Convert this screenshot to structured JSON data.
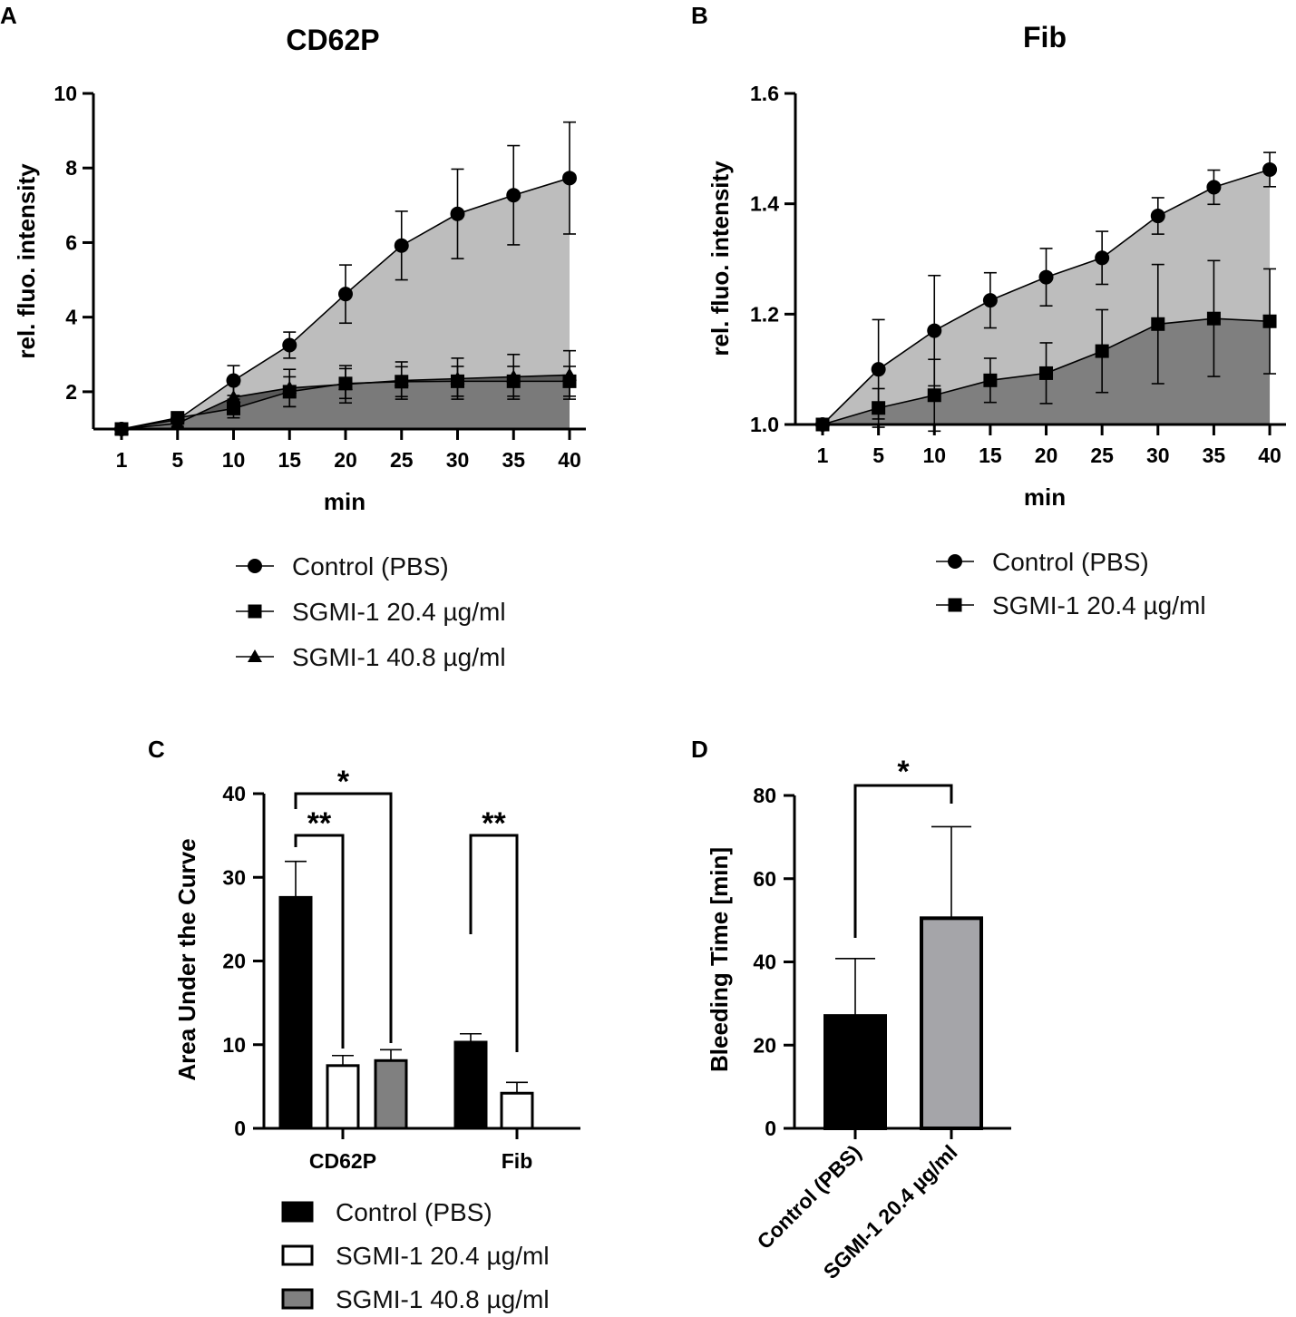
{
  "chart_data": [
    {
      "panel": "A",
      "type": "area",
      "title": "CD62P",
      "xlabel": "min",
      "ylabel": "rel. fluo. intensity",
      "x": [
        "1",
        "5",
        "10",
        "15",
        "20",
        "25",
        "30",
        "35",
        "40"
      ],
      "yticks": [
        "2",
        "4",
        "6",
        "8",
        "10"
      ],
      "ylim": [
        1,
        10
      ],
      "series": [
        {
          "name": "Control (PBS)",
          "marker": "circle",
          "fill": "#bdbdbd",
          "values": [
            1.0,
            1.25,
            2.3,
            3.25,
            4.62,
            5.92,
            6.77,
            7.27,
            7.73
          ],
          "errors": [
            0,
            0.1,
            0.4,
            0.35,
            0.78,
            0.92,
            1.2,
            1.33,
            1.5
          ]
        },
        {
          "name": "SGMI-1 20.4 µg/ml",
          "marker": "square",
          "fill": "#7a7a7a",
          "values": [
            1.0,
            1.3,
            1.55,
            2.0,
            2.22,
            2.27,
            2.28,
            2.28,
            2.28
          ],
          "errors": [
            0,
            0.08,
            0.25,
            0.4,
            0.4,
            0.4,
            0.4,
            0.4,
            0.4
          ]
        },
        {
          "name": "SGMI-1 40.8 µg/ml",
          "marker": "triangle",
          "fill": "#5a5a5a",
          "values": [
            1.0,
            1.15,
            1.85,
            2.1,
            2.2,
            2.3,
            2.35,
            2.4,
            2.45
          ],
          "errors": [
            0,
            0.08,
            0.35,
            0.5,
            0.5,
            0.5,
            0.55,
            0.6,
            0.65
          ]
        }
      ]
    },
    {
      "panel": "B",
      "type": "area",
      "title": "Fib",
      "xlabel": "min",
      "ylabel": "rel. fluo. intensity",
      "x": [
        "1",
        "5",
        "10",
        "15",
        "20",
        "25",
        "30",
        "35",
        "40"
      ],
      "yticks": [
        "1.0",
        "1.2",
        "1.4",
        "1.6"
      ],
      "ylim": [
        1.0,
        1.6
      ],
      "series": [
        {
          "name": "Control (PBS)",
          "marker": "circle",
          "fill": "#bdbdbd",
          "values": [
            1.0,
            1.1,
            1.17,
            1.225,
            1.267,
            1.302,
            1.378,
            1.43,
            1.462
          ],
          "errors": [
            0,
            0.09,
            0.1,
            0.05,
            0.052,
            0.048,
            0.033,
            0.031,
            0.031
          ]
        },
        {
          "name": "SGMI-1 20.4 µg/ml",
          "marker": "square",
          "fill": "#7f7f7f",
          "values": [
            1.0,
            1.03,
            1.053,
            1.08,
            1.093,
            1.133,
            1.182,
            1.192,
            1.187
          ],
          "errors": [
            0,
            0.035,
            0.065,
            0.04,
            0.055,
            0.075,
            0.108,
            0.105,
            0.095
          ]
        }
      ]
    },
    {
      "panel": "C",
      "type": "bar",
      "ylabel": "Area Under the Curve",
      "categories": [
        "CD62P",
        "Fib"
      ],
      "yticks": [
        "0",
        "10",
        "20",
        "30",
        "40"
      ],
      "ylim": [
        0,
        40
      ],
      "series": [
        {
          "name": "Control (PBS)",
          "fill": "#000000",
          "values": [
            27.6,
            10.3
          ],
          "errors": [
            4.3,
            1.0
          ]
        },
        {
          "name": "SGMI-1 20.4 µg/ml",
          "fill": "#ffffff",
          "values": [
            7.5,
            4.2
          ],
          "errors": [
            1.2,
            1.3
          ]
        },
        {
          "name": "SGMI-1 40.8 µg/ml",
          "fill": "#808080",
          "values": [
            8.1,
            null
          ],
          "errors": [
            1.3,
            null
          ]
        }
      ],
      "significance": [
        {
          "group": "CD62P",
          "from": "Control (PBS)",
          "to": "SGMI-1 20.4 µg/ml",
          "label": "**"
        },
        {
          "group": "CD62P",
          "from": "Control (PBS)",
          "to": "SGMI-1 40.8 µg/ml",
          "label": "*"
        },
        {
          "group": "Fib",
          "from": "Control (PBS)",
          "to": "SGMI-1 20.4 µg/ml",
          "label": "**"
        }
      ]
    },
    {
      "panel": "D",
      "type": "bar",
      "ylabel": "Bleeding Time [min]",
      "categories": [
        "Control (PBS)",
        "SGMI-1 20.4 µg/ml"
      ],
      "yticks": [
        "0",
        "20",
        "40",
        "60",
        "80"
      ],
      "ylim": [
        0,
        80
      ],
      "values": [
        27.0,
        50.5
      ],
      "errors": [
        13.8,
        22.0
      ],
      "fills": [
        "#000000",
        "#a5a5a9"
      ],
      "significance": [
        {
          "from": "Control (PBS)",
          "to": "SGMI-1 20.4 µg/ml",
          "label": "*"
        }
      ]
    }
  ],
  "colors": {
    "axis": "#000000",
    "light_fill": "#bdbdbd",
    "dark_fill": "#5a5a5a"
  }
}
